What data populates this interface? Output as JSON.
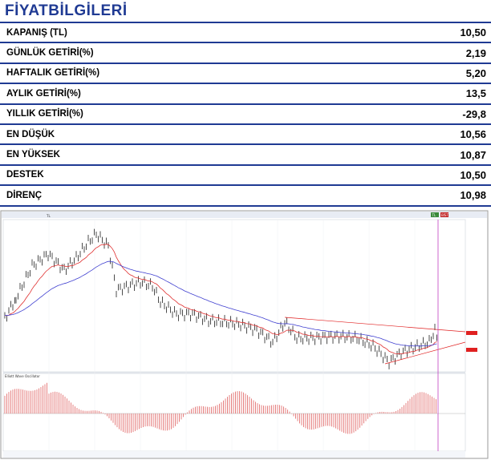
{
  "header": {
    "title": "FİYATBİLGİLERİ"
  },
  "rows": [
    {
      "label": "KAPANIŞ  (TL)",
      "value": "10,50"
    },
    {
      "label": "GÜNLÜK GETİRİ(%)",
      "value": "2,19"
    },
    {
      "label": "HAFTALIK GETİRİ(%)",
      "value": "5,20"
    },
    {
      "label": "AYLIK GETİRİ(%)",
      "value": "13,5"
    },
    {
      "label": "YILLIK  GETİRİ(%)",
      "value": "-29,8"
    },
    {
      "label": "EN DÜŞÜK",
      "value": "10,56"
    },
    {
      "label": "EN YÜKSEK",
      "value": "10,87"
    },
    {
      "label": "DESTEK",
      "value": "10,50"
    },
    {
      "label": "DİRENÇ",
      "value": "10,98"
    }
  ],
  "chart": {
    "top_bar_text": "TL",
    "badge_left": "TL",
    "badge_right": "BİST",
    "oscillator_label": "Elliott Wave Oscillator",
    "colors": {
      "price": "#000000",
      "ma_fast": "#e03030",
      "ma_slow": "#4040d0",
      "osc": "#e06060",
      "cursor": "#c040c0",
      "tag": "#e02020"
    }
  }
}
